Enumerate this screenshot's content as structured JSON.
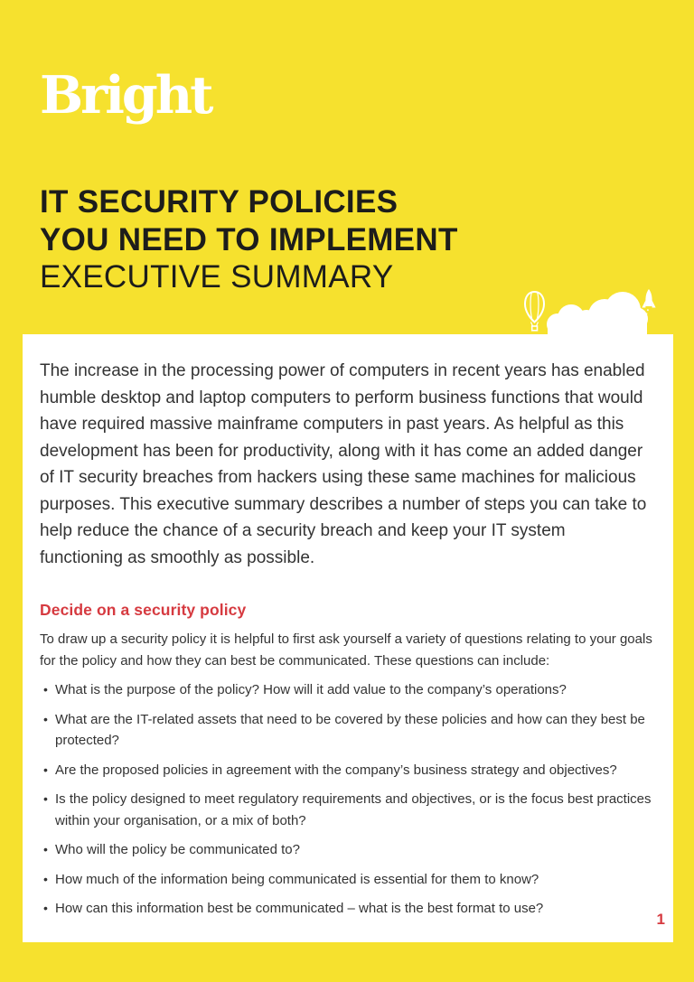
{
  "page": {
    "background_color": "#f6e12e",
    "accent_red": "#d63a40",
    "title_color": "#1d1d1b",
    "body_text_color": "#333333",
    "page_number": "1"
  },
  "logo": {
    "text": "Bright"
  },
  "header": {
    "title_line1": "IT SECURITY POLICIES",
    "title_line2": "YOU NEED TO IMPLEMENT",
    "title_line3": "EXECUTIVE SUMMARY"
  },
  "decor": {
    "icons": [
      "hot-air-balloon-icon",
      "cloud-icon",
      "rocket-icon"
    ]
  },
  "content": {
    "intro": "The increase in the processing power of computers in recent years has enabled humble desktop and laptop computers to perform business functions that would have required massive mainframe computers in past years. As helpful as this development has been for productivity, along with it has come an added danger of IT security breaches from hackers using these same machines for malicious purposes. This executive summary describes a number of steps you can take to help reduce the chance of a security breach and keep your IT system functioning as smoothly as possible.",
    "section": {
      "heading": "Decide on a security policy",
      "body": "To draw up a security policy it is helpful to first ask yourself a variety of questions relating to your goals for the policy and how they can best be communicated. These questions can include:",
      "bullet_char": "•",
      "bullets": [
        "What is the purpose of the policy? How will it add value to the company’s operations?",
        "What are the IT-related assets that need to be covered by these policies and how can they best be protected?",
        "Are the proposed policies in agreement with the company’s business strategy and objectives?",
        "Is the policy designed to meet regulatory requirements and objectives, or is the focus best practices within your organisation, or a mix of both?",
        "Who will the policy be communicated to?",
        "How much of the information being communicated is essential for them to know?",
        "How can this information best be communicated – what is the best format to use?"
      ]
    }
  }
}
